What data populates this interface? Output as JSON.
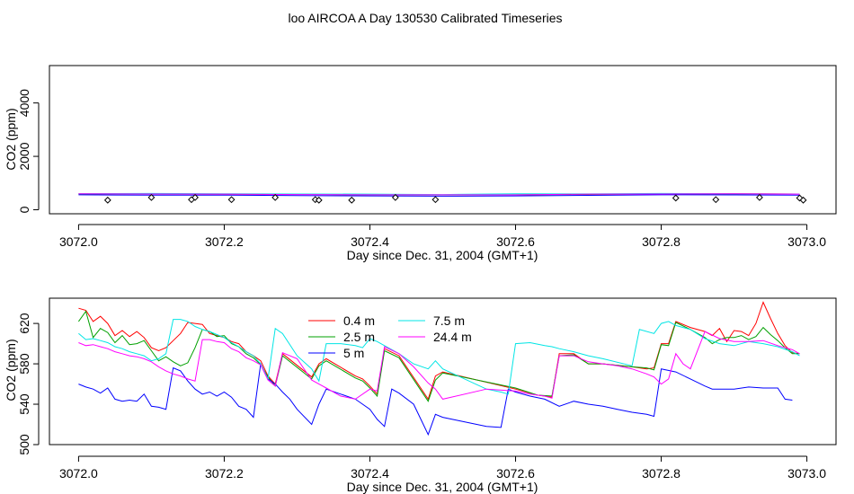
{
  "title": "loo AIRCOA A  Day 130530  Calibrated Timeseries",
  "chart_data": [
    {
      "type": "line",
      "panel": "top",
      "xlabel": "Day since Dec. 31, 2004 (GMT+1)",
      "ylabel": "CO2 (ppm)",
      "xlim": [
        3071.96,
        3073.04
      ],
      "ylim": [
        -150,
        5400
      ],
      "x_ticks": [
        "3072.0",
        "3072.2",
        "3072.4",
        "3072.6",
        "3072.8",
        "3073.0"
      ],
      "y_ticks": [
        "0",
        "2000",
        "4000"
      ],
      "series": [
        {
          "color": "#ff0000",
          "x": [
            3072.0,
            3072.1,
            3072.2,
            3072.3,
            3072.4,
            3072.5,
            3072.6,
            3072.7,
            3072.8,
            3072.9,
            3072.99
          ],
          "values": [
            600,
            595,
            585,
            580,
            560,
            555,
            560,
            580,
            590,
            600,
            590
          ]
        },
        {
          "color": "#00a000",
          "x": [
            3072.0,
            3072.1,
            3072.2,
            3072.3,
            3072.4,
            3072.5,
            3072.6,
            3072.7,
            3072.8,
            3072.9,
            3072.99
          ],
          "values": [
            590,
            585,
            580,
            575,
            560,
            555,
            560,
            575,
            585,
            595,
            590
          ]
        },
        {
          "color": "#0000ff",
          "x": [
            3072.0,
            3072.1,
            3072.2,
            3072.3,
            3072.4,
            3072.5,
            3072.6,
            3072.7,
            3072.8,
            3072.9,
            3072.99
          ],
          "values": [
            560,
            545,
            550,
            530,
            520,
            510,
            520,
            540,
            560,
            555,
            545
          ]
        },
        {
          "color": "#00e5e5",
          "x": [
            3072.0,
            3072.1,
            3072.2,
            3072.3,
            3072.4,
            3072.5,
            3072.6,
            3072.7,
            3072.8,
            3072.9,
            3072.99
          ],
          "values": [
            605,
            610,
            600,
            590,
            585,
            570,
            600,
            595,
            610,
            600,
            590
          ]
        },
        {
          "color": "#ff00ff",
          "x": [
            3072.0,
            3072.1,
            3072.2,
            3072.3,
            3072.4,
            3072.5,
            3072.6,
            3072.7,
            3072.8,
            3072.9,
            3072.99
          ],
          "values": [
            598,
            590,
            585,
            570,
            560,
            560,
            555,
            585,
            590,
            600,
            588
          ]
        }
      ],
      "markers": {
        "shape": "diamond",
        "x": [
          3072.04,
          3072.1,
          3072.155,
          3072.16,
          3072.21,
          3072.27,
          3072.325,
          3072.33,
          3072.375,
          3072.435,
          3072.49,
          3072.82,
          3072.875,
          3072.935,
          3072.99,
          3072.995
        ],
        "values": [
          360,
          460,
          380,
          460,
          380,
          460,
          380,
          360,
          360,
          460,
          380,
          440,
          380,
          460,
          440,
          360
        ]
      }
    },
    {
      "type": "line",
      "panel": "bottom",
      "xlabel": "Day since Dec. 31, 2004 (GMT+1)",
      "ylabel": "CO2 (ppm)",
      "xlim": [
        3071.96,
        3073.04
      ],
      "ylim": [
        500,
        645
      ],
      "x_ticks": [
        "3072.0",
        "3072.2",
        "3072.4",
        "3072.6",
        "3072.8",
        "3073.0"
      ],
      "y_ticks": [
        "500",
        "540",
        "580",
        "620"
      ],
      "legend": {
        "placement": "top-center",
        "entries": [
          {
            "label": "0.4 m",
            "color": "#ff0000"
          },
          {
            "label": "2.5 m",
            "color": "#00a000"
          },
          {
            "label": "5 m",
            "color": "#0000ff"
          },
          {
            "label": "7.5 m",
            "color": "#00e5e5"
          },
          {
            "label": "24.4 m",
            "color": "#ff00ff"
          }
        ]
      },
      "series": [
        {
          "name": "0.4 m",
          "color": "#ff0000",
          "x": [
            3072.0,
            3072.01,
            3072.02,
            3072.03,
            3072.04,
            3072.05,
            3072.06,
            3072.07,
            3072.08,
            3072.09,
            3072.1,
            3072.11,
            3072.12,
            3072.13,
            3072.14,
            3072.15,
            3072.16,
            3072.17,
            3072.18,
            3072.19,
            3072.2,
            3072.21,
            3072.22,
            3072.23,
            3072.24,
            3072.25,
            3072.26,
            3072.27,
            3072.28,
            3072.32,
            3072.33,
            3072.34,
            3072.38,
            3072.39,
            3072.4,
            3072.41,
            3072.42,
            3072.44,
            3072.48,
            3072.49,
            3072.5,
            3072.6,
            3072.63,
            3072.65,
            3072.66,
            3072.68,
            3072.7,
            3072.72,
            3072.76,
            3072.78,
            3072.79,
            3072.8,
            3072.81,
            3072.82,
            3072.84,
            3072.86,
            3072.87,
            3072.88,
            3072.89,
            3072.9,
            3072.91,
            3072.92,
            3072.93,
            3072.94,
            3072.95,
            3072.96,
            3072.97,
            3072.98,
            3072.99
          ],
          "values": [
            635,
            633,
            622,
            627,
            620,
            608,
            613,
            607,
            612,
            606,
            596,
            593,
            596,
            603,
            610,
            621,
            620,
            619,
            610,
            608,
            606,
            602,
            600,
            592,
            588,
            583,
            568,
            560,
            590,
            567,
            580,
            585,
            568,
            565,
            558,
            550,
            595,
            588,
            545,
            568,
            572,
            555,
            549,
            547,
            590,
            590,
            580,
            580,
            577,
            575,
            576,
            600,
            600,
            622,
            616,
            612,
            608,
            615,
            602,
            613,
            612,
            608,
            620,
            641,
            625,
            610,
            598,
            591,
            590
          ]
        },
        {
          "name": "2.5 m",
          "color": "#00a000",
          "x": [
            3072.0,
            3072.01,
            3072.02,
            3072.03,
            3072.04,
            3072.05,
            3072.06,
            3072.07,
            3072.08,
            3072.09,
            3072.1,
            3072.11,
            3072.12,
            3072.13,
            3072.14,
            3072.15,
            3072.16,
            3072.17,
            3072.18,
            3072.19,
            3072.2,
            3072.21,
            3072.22,
            3072.23,
            3072.24,
            3072.25,
            3072.26,
            3072.27,
            3072.28,
            3072.32,
            3072.33,
            3072.34,
            3072.38,
            3072.39,
            3072.4,
            3072.41,
            3072.42,
            3072.44,
            3072.48,
            3072.49,
            3072.5,
            3072.6,
            3072.63,
            3072.65,
            3072.66,
            3072.68,
            3072.7,
            3072.72,
            3072.76,
            3072.78,
            3072.79,
            3072.8,
            3072.81,
            3072.82,
            3072.84,
            3072.86,
            3072.87,
            3072.88,
            3072.89,
            3072.9,
            3072.91,
            3072.92,
            3072.93,
            3072.94,
            3072.95,
            3072.96,
            3072.97,
            3072.98,
            3072.99
          ],
          "values": [
            622,
            632,
            606,
            615,
            611,
            601,
            608,
            599,
            600,
            603,
            593,
            583,
            587,
            582,
            578,
            581,
            596,
            614,
            612,
            607,
            608,
            600,
            597,
            590,
            586,
            579,
            567,
            558,
            588,
            565,
            578,
            583,
            566,
            563,
            556,
            548,
            593,
            586,
            543,
            564,
            571,
            556,
            549,
            548,
            588,
            589,
            580,
            580,
            577,
            576,
            574,
            599,
            598,
            621,
            614,
            606,
            600,
            604,
            606,
            606,
            608,
            604,
            607,
            616,
            609,
            603,
            596,
            590,
            590
          ]
        },
        {
          "name": "5 m",
          "color": "#0000ff",
          "x": [
            3072.0,
            3072.01,
            3072.02,
            3072.03,
            3072.04,
            3072.05,
            3072.06,
            3072.07,
            3072.08,
            3072.09,
            3072.1,
            3072.11,
            3072.12,
            3072.13,
            3072.14,
            3072.15,
            3072.16,
            3072.17,
            3072.18,
            3072.19,
            3072.2,
            3072.21,
            3072.22,
            3072.23,
            3072.24,
            3072.25,
            3072.26,
            3072.27,
            3072.28,
            3072.29,
            3072.3,
            3072.32,
            3072.33,
            3072.34,
            3072.36,
            3072.38,
            3072.4,
            3072.41,
            3072.42,
            3072.43,
            3072.44,
            3072.46,
            3072.47,
            3072.48,
            3072.49,
            3072.5,
            3072.52,
            3072.56,
            3072.58,
            3072.59,
            3072.6,
            3072.62,
            3072.64,
            3072.66,
            3072.68,
            3072.7,
            3072.72,
            3072.74,
            3072.76,
            3072.78,
            3072.79,
            3072.8,
            3072.82,
            3072.84,
            3072.86,
            3072.87,
            3072.88,
            3072.9,
            3072.92,
            3072.94,
            3072.96,
            3072.97,
            3072.98
          ],
          "values": [
            560,
            557,
            555,
            551,
            556,
            545,
            543,
            544,
            543,
            550,
            538,
            537,
            535,
            576,
            573,
            563,
            555,
            550,
            552,
            548,
            552,
            547,
            538,
            535,
            527,
            580,
            565,
            560,
            552,
            545,
            535,
            520,
            540,
            555,
            550,
            545,
            535,
            525,
            518,
            555,
            551,
            540,
            525,
            510,
            530,
            527,
            524,
            518,
            517,
            555,
            552,
            548,
            545,
            538,
            543,
            540,
            538,
            535,
            532,
            530,
            528,
            575,
            572,
            565,
            558,
            555,
            555,
            555,
            557,
            556,
            556,
            545,
            544
          ]
        },
        {
          "name": "7.5 m",
          "color": "#00e5e5",
          "x": [
            3072.0,
            3072.01,
            3072.02,
            3072.03,
            3072.04,
            3072.05,
            3072.06,
            3072.07,
            3072.08,
            3072.09,
            3072.1,
            3072.11,
            3072.12,
            3072.13,
            3072.14,
            3072.15,
            3072.16,
            3072.17,
            3072.18,
            3072.19,
            3072.2,
            3072.21,
            3072.22,
            3072.23,
            3072.24,
            3072.25,
            3072.26,
            3072.27,
            3072.28,
            3072.3,
            3072.32,
            3072.33,
            3072.34,
            3072.36,
            3072.38,
            3072.39,
            3072.4,
            3072.41,
            3072.42,
            3072.44,
            3072.46,
            3072.48,
            3072.49,
            3072.5,
            3072.56,
            3072.58,
            3072.59,
            3072.6,
            3072.62,
            3072.64,
            3072.65,
            3072.66,
            3072.68,
            3072.7,
            3072.72,
            3072.76,
            3072.77,
            3072.79,
            3072.8,
            3072.81,
            3072.82,
            3072.84,
            3072.86,
            3072.88,
            3072.9,
            3072.92,
            3072.94,
            3072.96,
            3072.98,
            3072.99
          ],
          "values": [
            610,
            604,
            605,
            603,
            601,
            597,
            595,
            592,
            590,
            588,
            583,
            585,
            590,
            624,
            624,
            622,
            617,
            614,
            612,
            609,
            606,
            601,
            597,
            592,
            588,
            580,
            565,
            615,
            610,
            588,
            575,
            563,
            600,
            600,
            598,
            596,
            605,
            602,
            598,
            590,
            580,
            575,
            583,
            575,
            555,
            552,
            550,
            600,
            601,
            598,
            597,
            595,
            592,
            588,
            585,
            578,
            614,
            610,
            620,
            622,
            618,
            614,
            605,
            600,
            598,
            602,
            600,
            597,
            592,
            588
          ]
        },
        {
          "name": "24.4 m",
          "color": "#ff00ff",
          "x": [
            3072.0,
            3072.01,
            3072.02,
            3072.03,
            3072.04,
            3072.05,
            3072.06,
            3072.07,
            3072.08,
            3072.09,
            3072.1,
            3072.11,
            3072.12,
            3072.13,
            3072.14,
            3072.15,
            3072.16,
            3072.17,
            3072.18,
            3072.19,
            3072.2,
            3072.21,
            3072.22,
            3072.23,
            3072.24,
            3072.25,
            3072.26,
            3072.27,
            3072.28,
            3072.3,
            3072.32,
            3072.33,
            3072.34,
            3072.36,
            3072.38,
            3072.4,
            3072.41,
            3072.42,
            3072.44,
            3072.46,
            3072.48,
            3072.49,
            3072.5,
            3072.56,
            3072.6,
            3072.62,
            3072.64,
            3072.65,
            3072.66,
            3072.68,
            3072.7,
            3072.72,
            3072.74,
            3072.76,
            3072.78,
            3072.79,
            3072.8,
            3072.81,
            3072.82,
            3072.83,
            3072.84,
            3072.86,
            3072.88,
            3072.9,
            3072.92,
            3072.94,
            3072.96,
            3072.98,
            3072.99
          ],
          "values": [
            601,
            598,
            599,
            597,
            595,
            592,
            590,
            588,
            587,
            585,
            582,
            577,
            573,
            570,
            568,
            565,
            563,
            604,
            604,
            602,
            601,
            595,
            592,
            586,
            583,
            579,
            564,
            558,
            591,
            585,
            564,
            560,
            556,
            548,
            545,
            555,
            553,
            597,
            590,
            577,
            561,
            555,
            545,
            555,
            553,
            550,
            548,
            546,
            588,
            588,
            582,
            580,
            578,
            575,
            570,
            567,
            560,
            565,
            590,
            580,
            575,
            612,
            605,
            602,
            602,
            603,
            598,
            594,
            590
          ]
        }
      ]
    }
  ]
}
